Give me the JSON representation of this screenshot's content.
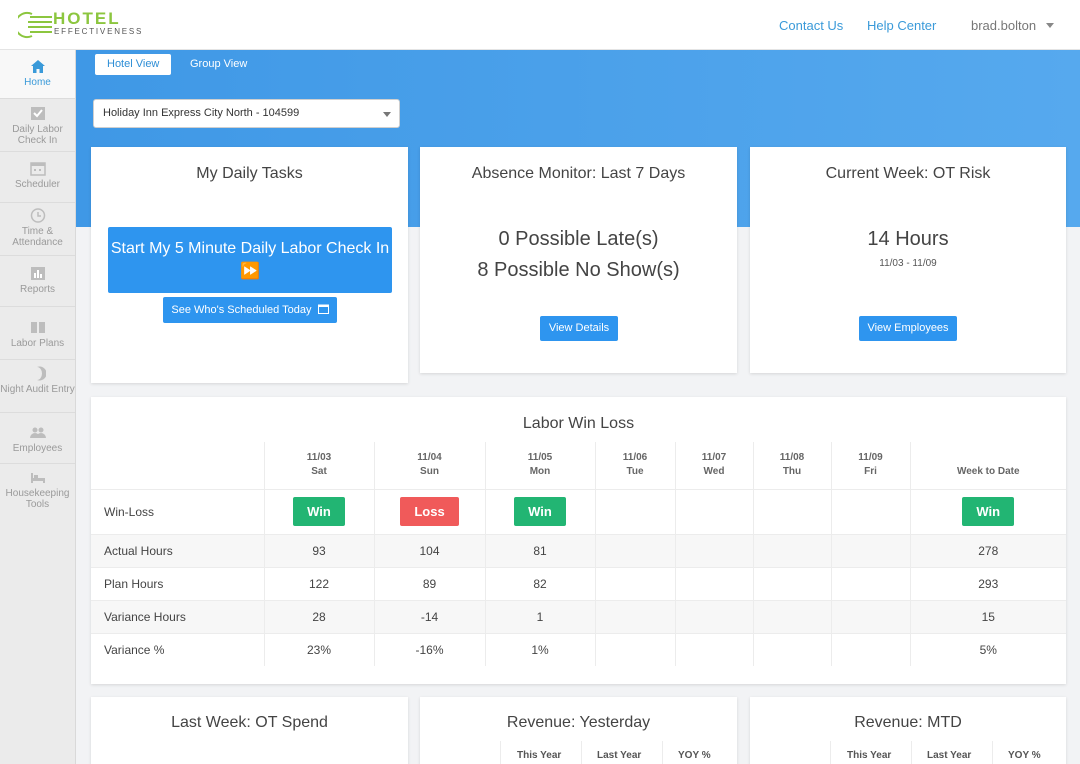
{
  "brand": {
    "line1": "HOTEL",
    "line2": "EFFECTIVENESS",
    "color": "#8cc63f"
  },
  "header": {
    "contact": "Contact Us",
    "help": "Help Center",
    "user": "brad.bolton"
  },
  "sidebar": {
    "items": [
      {
        "label": "Home",
        "icon": "home-icon"
      },
      {
        "label": "Daily Labor Check In",
        "icon": "checkbox-icon"
      },
      {
        "label": "Scheduler",
        "icon": "calendar-icon"
      },
      {
        "label": "Time & Attendance",
        "icon": "clock-icon"
      },
      {
        "label": "Reports",
        "icon": "bar-chart-icon"
      },
      {
        "label": "Labor Plans",
        "icon": "book-icon"
      },
      {
        "label": "Night Audit Entry",
        "icon": "moon-icon"
      },
      {
        "label": "Employees",
        "icon": "people-icon"
      },
      {
        "label": "Housekeeping Tools",
        "icon": "bed-icon"
      }
    ]
  },
  "view_tabs": {
    "hotel": "Hotel View",
    "group": "Group View"
  },
  "hotel_select": {
    "value": "Holiday Inn Express City North - 104599"
  },
  "tasks": {
    "title": "My Daily Tasks",
    "start_button": "Start My 5 Minute Daily Labor Check In ⏩",
    "scheduled_button": "See Who's Scheduled Today"
  },
  "absence": {
    "title": "Absence Monitor: Last 7 Days",
    "late": "0 Possible Late(s)",
    "noshow": "8 Possible No Show(s)",
    "button": "View Details"
  },
  "ot_risk": {
    "title": "Current Week: OT Risk",
    "hours": "14 Hours",
    "range": "11/03 - 11/09",
    "button": "View Employees"
  },
  "win_loss": {
    "title": "Labor Win Loss",
    "columns": [
      {
        "date": "11/03",
        "day": "Sat"
      },
      {
        "date": "11/04",
        "day": "Sun"
      },
      {
        "date": "11/05",
        "day": "Mon"
      },
      {
        "date": "11/06",
        "day": "Tue"
      },
      {
        "date": "11/07",
        "day": "Wed"
      },
      {
        "date": "11/08",
        "day": "Thu"
      },
      {
        "date": "11/09",
        "day": "Fri"
      },
      {
        "date": "",
        "day": "Week to Date"
      }
    ],
    "win_label": "Win-Loss",
    "results": [
      "Win",
      "Loss",
      "Win",
      "",
      "",
      "",
      "",
      "Win"
    ],
    "rows": [
      {
        "label": "Actual Hours",
        "values": [
          "93",
          "104",
          "81",
          "",
          "",
          "",
          "",
          "278"
        ]
      },
      {
        "label": "Plan Hours",
        "values": [
          "122",
          "89",
          "82",
          "",
          "",
          "",
          "",
          "293"
        ]
      },
      {
        "label": "Variance Hours",
        "values": [
          "28",
          "-14",
          "1",
          "",
          "",
          "",
          "",
          "15"
        ]
      },
      {
        "label": "Variance %",
        "values": [
          "23%",
          "-16%",
          "1%",
          "",
          "",
          "",
          "",
          "5%"
        ]
      }
    ],
    "colors": {
      "win": "#22b573",
      "loss": "#f05a5a"
    }
  },
  "bottom": {
    "ot_spend_title": "Last Week: OT Spend",
    "rev_yesterday_title": "Revenue: Yesterday",
    "rev_mtd_title": "Revenue: MTD",
    "cols": [
      "This Year",
      "Last Year",
      "YOY %"
    ]
  },
  "colors": {
    "accent": "#2e95ef",
    "link": "#3a9ad9"
  }
}
